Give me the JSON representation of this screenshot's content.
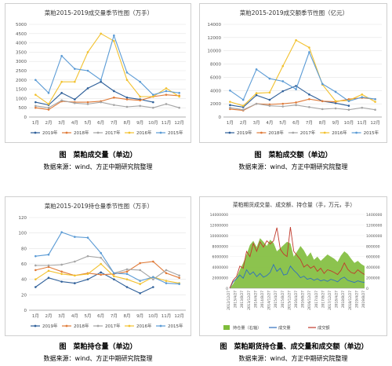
{
  "chart_data": [
    {
      "id": "vol",
      "type": "line",
      "title": "菜粕2015-2019成交量季节性图（万手）",
      "categories": [
        "1月",
        "2月",
        "3月",
        "4月",
        "5月",
        "6月",
        "7月",
        "8月",
        "9月",
        "10月",
        "11月",
        "12月"
      ],
      "ylim": [
        0,
        5000
      ],
      "yticks": [
        0,
        500,
        1000,
        1500,
        2000,
        2500,
        3000,
        3500,
        4000,
        4500,
        5000
      ],
      "grid": true,
      "legend_position": "bottom",
      "series": [
        {
          "name": "2019年",
          "color": "#2e5f99",
          "values": [
            800,
            650,
            1300,
            950,
            1550,
            1900,
            1400,
            1050,
            950,
            800,
            null,
            null
          ]
        },
        {
          "name": "2018年",
          "color": "#e07b39",
          "values": [
            500,
            400,
            850,
            800,
            800,
            850,
            1050,
            950,
            900,
            1100,
            1200,
            1150
          ]
        },
        {
          "name": "2017年",
          "color": "#a5a5a5",
          "values": [
            600,
            500,
            900,
            750,
            700,
            800,
            650,
            550,
            600,
            500,
            700,
            500
          ]
        },
        {
          "name": "2016年",
          "color": "#f2c12e",
          "values": [
            1200,
            700,
            1900,
            1900,
            3500,
            4500,
            4100,
            2000,
            1100,
            1100,
            1550,
            1100
          ]
        },
        {
          "name": "2015年",
          "color": "#5b9bd5",
          "values": [
            2000,
            1300,
            3300,
            2600,
            2500,
            2000,
            4400,
            2400,
            1900,
            1200,
            1400,
            1300
          ]
        }
      ]
    },
    {
      "id": "amt",
      "type": "line",
      "title": "菜粕2015-2019成交额季节性图（亿元）",
      "categories": [
        "1月",
        "2月",
        "3月",
        "4月",
        "5月",
        "6月",
        "7月",
        "8月",
        "9月",
        "10月",
        "11月",
        "12月"
      ],
      "ylim": [
        0,
        14000
      ],
      "yticks": [
        0,
        2000,
        4000,
        6000,
        8000,
        10000,
        12000,
        14000
      ],
      "grid": true,
      "legend_position": "bottom",
      "series": [
        {
          "name": "2019年",
          "color": "#2e5f99",
          "values": [
            1800,
            1500,
            3300,
            2600,
            3900,
            4700,
            3400,
            2400,
            2100,
            1700,
            null,
            null
          ]
        },
        {
          "name": "2018年",
          "color": "#e07b39",
          "values": [
            1200,
            1000,
            2000,
            1900,
            2000,
            2200,
            2700,
            2400,
            2300,
            2700,
            2900,
            2700
          ]
        },
        {
          "name": "2017年",
          "color": "#a5a5a5",
          "values": [
            1400,
            1100,
            2000,
            1700,
            1600,
            1800,
            1500,
            1200,
            1300,
            1100,
            1400,
            1100
          ]
        },
        {
          "name": "2016年",
          "color": "#f2c12e",
          "values": [
            2300,
            1700,
            3600,
            3700,
            7700,
            11600,
            10500,
            4900,
            2400,
            2500,
            3400,
            2300
          ]
        },
        {
          "name": "2015年",
          "color": "#5b9bd5",
          "values": [
            4000,
            2600,
            7200,
            5800,
            5400,
            4200,
            9800,
            5000,
            3800,
            2400,
            3000,
            2700
          ]
        }
      ]
    },
    {
      "id": "oi",
      "type": "line",
      "title": "菜粕2015-2019持仓量季节性图（万手）",
      "categories": [
        "1月",
        "2月",
        "3月",
        "4月",
        "5月",
        "6月",
        "7月",
        "8月",
        "9月",
        "10月",
        "11月",
        "12月"
      ],
      "ylim": [
        0,
        120
      ],
      "yticks": [
        0,
        20,
        40,
        60,
        80,
        100,
        120
      ],
      "grid": true,
      "legend_position": "bottom",
      "series": [
        {
          "name": "2019年",
          "color": "#2e5f99",
          "values": [
            30,
            42,
            37,
            35,
            40,
            49,
            40,
            30,
            22,
            30,
            null,
            null
          ]
        },
        {
          "name": "2018年",
          "color": "#e07b39",
          "values": [
            52,
            56,
            50,
            45,
            48,
            46,
            47,
            50,
            61,
            63,
            48,
            42
          ]
        },
        {
          "name": "2017年",
          "color": "#a5a5a5",
          "values": [
            58,
            58,
            59,
            63,
            70,
            68,
            48,
            53,
            52,
            40,
            52,
            45
          ]
        },
        {
          "name": "2016年",
          "color": "#f2c12e",
          "values": [
            40,
            51,
            47,
            45,
            47,
            60,
            44,
            40,
            34,
            43,
            38,
            35
          ]
        },
        {
          "name": "2015年",
          "color": "#5b9bd5",
          "values": [
            70,
            72,
            101,
            95,
            94,
            74,
            48,
            47,
            38,
            43,
            35,
            34
          ]
        }
      ]
    },
    {
      "id": "fut",
      "type": "combo",
      "title": "菜粕期货成交量、成交额、持仓量（手，万元，手）",
      "x_tick_labels": [
        "2012/12/27",
        "2013/4/27",
        "2013/8/27",
        "2013/12/27",
        "2014/4/27",
        "2014/8/27",
        "2014/12/27",
        "2015/4/27",
        "2015/8/27",
        "2015/12/27",
        "2016/4/27",
        "2016/8/27",
        "2016/12/27",
        "2017/4/27",
        "2017/8/27",
        "2017/12/27",
        "2018/4/27",
        "2018/8/27",
        "2018/12/27",
        "2019/4/27",
        "2019/8/27"
      ],
      "left_axis": {
        "ylim": [
          0,
          14000000
        ],
        "ticks": [
          0,
          2000000,
          4000000,
          6000000,
          8000000,
          10000000,
          12000000,
          14000000
        ]
      },
      "right_axis": {
        "ylim": [
          0,
          1400000
        ],
        "ticks": [
          0,
          200000,
          400000,
          600000,
          800000,
          1000000,
          1200000,
          1400000
        ]
      },
      "legend_position": "bottom",
      "series": [
        {
          "name": "持仓量（右轴）",
          "kind": "area",
          "axis": "right",
          "color": "#7fbd3b",
          "values": [
            0,
            80000,
            200000,
            350000,
            480000,
            640000,
            820000,
            900000,
            780000,
            950000,
            880000,
            800000,
            920000,
            860000,
            700000,
            760000,
            820000,
            880000,
            850000,
            600000,
            700000,
            800000,
            720000,
            600000,
            680000,
            540000,
            600000,
            520000,
            580000,
            640000,
            600000,
            560000,
            500000,
            620000,
            700000,
            650000,
            560000,
            480000,
            520000,
            460000,
            420000
          ]
        },
        {
          "name": "成交量",
          "kind": "line",
          "axis": "left",
          "color": "#2e6fbf",
          "values": [
            0,
            1200000,
            1800000,
            2500000,
            1900000,
            3500000,
            2600000,
            3100000,
            2200000,
            2800000,
            2100000,
            2400000,
            3000000,
            4500000,
            3200000,
            3800000,
            2500000,
            2700000,
            4200000,
            3400000,
            2800000,
            2000000,
            2300000,
            1700000,
            1900000,
            1500000,
            1800000,
            1400000,
            1600000,
            1300000,
            1700000,
            1500000,
            1200000,
            1800000,
            2100000,
            1500000,
            1300000,
            1100000,
            1400000,
            1200000,
            1100000
          ]
        },
        {
          "name": "成交额",
          "kind": "line",
          "axis": "right",
          "color": "#c0392b",
          "values": [
            0,
            150000,
            220000,
            420000,
            380000,
            700000,
            600000,
            850000,
            700000,
            880000,
            780000,
            900000,
            840000,
            900000,
            1150000,
            740000,
            650000,
            600000,
            1160000,
            700000,
            620000,
            540000,
            400000,
            450000,
            380000,
            420000,
            320000,
            380000,
            280000,
            350000,
            330000,
            300000,
            260000,
            340000,
            480000,
            360000,
            300000,
            280000,
            350000,
            300000,
            260000
          ]
        }
      ]
    }
  ],
  "captions": {
    "vol": "图　菜粕成交量（单边）",
    "amt": "图　菜粕成交额（单边）",
    "oi": "图　菜粕持仓量（单边）",
    "fut": "图　菜粕期货持仓量、成交量和成交额（单边）"
  },
  "source_text": "数据来源：wind、方正中期研究院整理"
}
